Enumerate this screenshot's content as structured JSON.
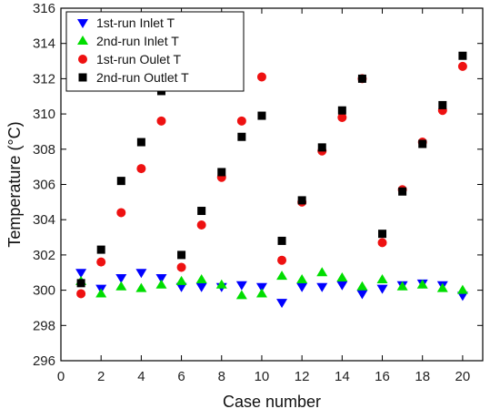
{
  "chart_data": {
    "type": "scatter",
    "title": "",
    "xlabel": "Case number",
    "ylabel": "Temperature (°C)",
    "xlim": [
      0,
      21
    ],
    "ylim": [
      296,
      316
    ],
    "xticks": [
      0,
      2,
      4,
      6,
      8,
      10,
      12,
      14,
      16,
      18,
      20
    ],
    "yticks": [
      296,
      298,
      300,
      302,
      304,
      306,
      308,
      310,
      312,
      314,
      316
    ],
    "grid": false,
    "legend_position": "top-left",
    "x": [
      1,
      2,
      3,
      4,
      5,
      6,
      7,
      8,
      9,
      10,
      11,
      12,
      13,
      14,
      15,
      16,
      17,
      18,
      19,
      20
    ],
    "series": [
      {
        "name": "1st-run Inlet T",
        "marker": "triangle-down",
        "color": "#0000ff",
        "values": [
          301.0,
          300.1,
          300.7,
          301.0,
          300.7,
          300.2,
          300.2,
          300.2,
          300.3,
          300.2,
          299.3,
          300.2,
          300.2,
          300.3,
          299.8,
          300.1,
          300.3,
          300.4,
          300.3,
          299.7
        ]
      },
      {
        "name": "2nd-run Inlet T",
        "marker": "triangle-up",
        "color": "#00dd00",
        "values": [
          300.5,
          299.8,
          300.2,
          300.1,
          300.3,
          300.5,
          300.6,
          300.3,
          299.7,
          299.8,
          300.8,
          300.6,
          301.0,
          300.7,
          300.2,
          300.6,
          300.2,
          300.3,
          300.1,
          300.0
        ]
      },
      {
        "name": "1st-run Oulet T",
        "marker": "circle",
        "color": "#ee1111",
        "values": [
          299.8,
          301.6,
          304.4,
          306.9,
          309.6,
          301.3,
          303.7,
          306.4,
          309.6,
          312.1,
          301.7,
          305.0,
          307.9,
          309.8,
          312.0,
          302.7,
          305.7,
          308.4,
          310.2,
          312.7
        ]
      },
      {
        "name": "2nd-run Outlet T",
        "marker": "square",
        "color": "#000000",
        "values": [
          300.4,
          302.3,
          306.2,
          308.4,
          311.3,
          302.0,
          304.5,
          306.7,
          308.7,
          309.9,
          302.8,
          305.1,
          308.1,
          310.2,
          312.0,
          303.2,
          305.6,
          308.3,
          310.5,
          313.3
        ]
      }
    ]
  }
}
